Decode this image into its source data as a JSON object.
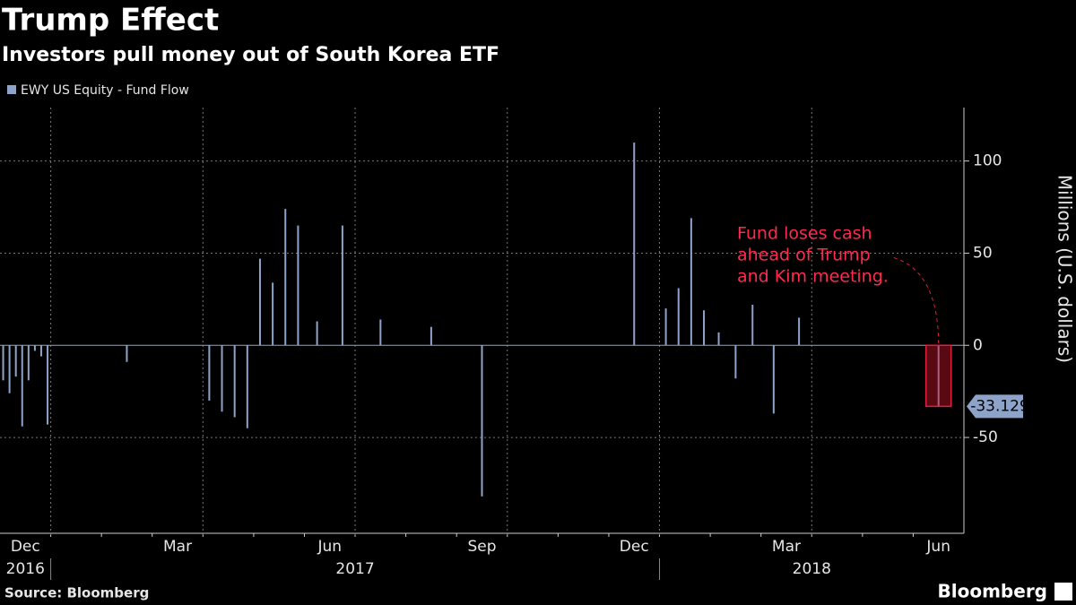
{
  "chart_data": {
    "type": "bar",
    "title": "Trump Effect",
    "subtitle": "Investors pull money out of South Korea ETF",
    "y_label": "Millions (U.S. dollars)",
    "source": "Source: Bloomberg",
    "brand": "Bloomberg",
    "annotation": [
      "Fund loses cash",
      "ahead of Trump",
      "and Kim meeting."
    ],
    "series": [
      {
        "name": "EWY US Equity - Fund Flow",
        "color": "#8ea3c9",
        "x": [
          "2016-12",
          "2016-12",
          "2016-12",
          "2016-12",
          "2016-12",
          "2016-12",
          "2016-12",
          "2016-12",
          "2017-02",
          "2017-04",
          "2017-04",
          "2017-04",
          "2017-04",
          "2017-05",
          "2017-05",
          "2017-05",
          "2017-05",
          "2017-06",
          "2017-06",
          "2017-07",
          "2017-08",
          "2017-09",
          "2017-12",
          "2018-01",
          "2018-01",
          "2018-01",
          "2018-01",
          "2018-02",
          "2018-02",
          "2018-02",
          "2018-03",
          "2018-03",
          "2018-06"
        ],
        "values": [
          -19,
          -26,
          -17,
          -44,
          -19,
          -3,
          -6,
          -43,
          -9,
          -30,
          -36,
          -39,
          -45,
          47,
          34,
          74,
          65,
          13,
          65,
          14,
          10,
          -82,
          110,
          20,
          31,
          69,
          19,
          7,
          -18,
          22,
          -37,
          15,
          -33.129
        ]
      }
    ],
    "xlim": [
      "2016-12",
      "2018-06"
    ],
    "xticks": [
      {
        "value": "2016-12",
        "label": "Dec"
      },
      {
        "value": "2017-03",
        "label": "Mar"
      },
      {
        "value": "2017-06",
        "label": "Jun"
      },
      {
        "value": "2017-09",
        "label": "Sep"
      },
      {
        "value": "2017-12",
        "label": "Dec"
      },
      {
        "value": "2018-03",
        "label": "Mar"
      },
      {
        "value": "2018-06",
        "label": "Jun"
      }
    ],
    "x_years": [
      "2016",
      "2017",
      "2018"
    ],
    "ylim": [
      -102,
      129
    ],
    "yticks": [
      -50,
      0,
      50,
      100
    ],
    "grid": true
  }
}
